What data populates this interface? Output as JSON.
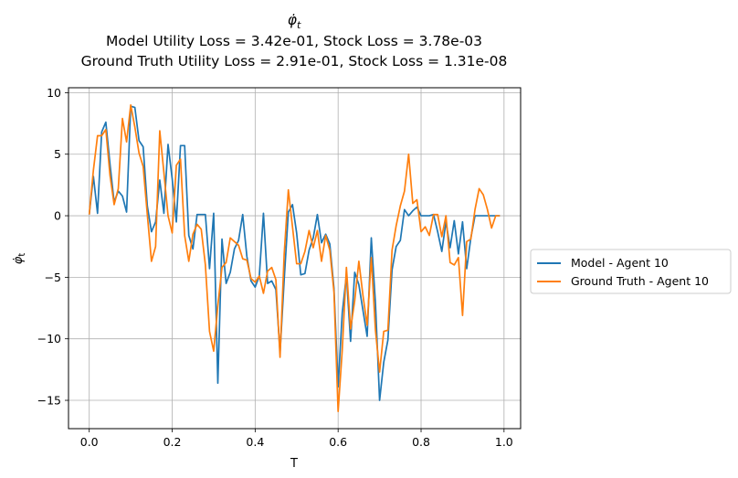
{
  "chart_data": {
    "type": "line",
    "title_symbol": "φ̇",
    "title_subscript": "t",
    "subtitle_1": "Model Utility Loss = 3.42e-01, Stock Loss = 3.78e-03",
    "subtitle_2": "Ground Truth Utility Loss = 2.91e-01, Stock Loss = 1.31e-08",
    "xlabel": "T",
    "ylabel_symbol": "φ̇",
    "ylabel_subscript": "t",
    "xlim": [
      -0.05,
      1.04
    ],
    "ylim": [
      -17.3,
      10.4
    ],
    "xticks": [
      0.0,
      0.2,
      0.4,
      0.6,
      0.8,
      1.0
    ],
    "xtick_labels": [
      "0.0",
      "0.2",
      "0.4",
      "0.6",
      "0.8",
      "1.0"
    ],
    "yticks": [
      10,
      5,
      0,
      -5,
      -10,
      -15
    ],
    "ytick_labels": [
      "10",
      "5",
      "0",
      "−5",
      "−10",
      "−15"
    ],
    "grid": true,
    "legend_position": "right-outside",
    "series": [
      {
        "name": "Model - Agent 10",
        "color": "#1f77b4",
        "x": [
          0.0,
          0.01,
          0.02,
          0.03,
          0.04,
          0.05,
          0.06,
          0.07,
          0.08,
          0.09,
          0.1,
          0.11,
          0.12,
          0.13,
          0.14,
          0.15,
          0.16,
          0.17,
          0.18,
          0.19,
          0.2,
          0.21,
          0.22,
          0.23,
          0.24,
          0.25,
          0.26,
          0.27,
          0.28,
          0.29,
          0.3,
          0.31,
          0.32,
          0.33,
          0.34,
          0.35,
          0.36,
          0.37,
          0.38,
          0.39,
          0.4,
          0.41,
          0.42,
          0.43,
          0.44,
          0.45,
          0.46,
          0.47,
          0.48,
          0.49,
          0.5,
          0.51,
          0.52,
          0.53,
          0.54,
          0.55,
          0.56,
          0.57,
          0.58,
          0.59,
          0.6,
          0.61,
          0.62,
          0.63,
          0.64,
          0.65,
          0.66,
          0.67,
          0.68,
          0.69,
          0.7,
          0.71,
          0.72,
          0.73,
          0.74,
          0.75,
          0.76,
          0.77,
          0.78,
          0.79,
          0.8,
          0.81,
          0.82,
          0.83,
          0.84,
          0.85,
          0.86,
          0.87,
          0.88,
          0.89,
          0.9,
          0.91,
          0.92,
          0.93,
          0.94,
          0.95,
          0.96,
          0.97,
          0.98,
          0.99
        ],
        "y": [
          0.1,
          3.2,
          0.2,
          6.8,
          7.6,
          4.2,
          1.1,
          2.0,
          1.6,
          0.3,
          8.9,
          8.8,
          6.1,
          5.6,
          0.8,
          -1.3,
          -0.5,
          2.9,
          0.2,
          5.8,
          3.0,
          -0.5,
          5.7,
          5.7,
          -1.6,
          -2.7,
          0.1,
          0.1,
          0.1,
          -4.3,
          0.2,
          -13.6,
          -1.9,
          -5.5,
          -4.6,
          -2.7,
          -2.0,
          0.1,
          -3.3,
          -5.3,
          -5.8,
          -4.9,
          0.2,
          -5.5,
          -5.3,
          -6.0,
          -11.1,
          -5.2,
          0.3,
          0.9,
          -1.4,
          -4.8,
          -4.7,
          -2.8,
          -1.8,
          0.1,
          -2.2,
          -1.5,
          -2.3,
          -5.9,
          -13.9,
          -7.9,
          -4.8,
          -10.2,
          -4.6,
          -5.6,
          -7.7,
          -9.8,
          -1.8,
          -7.1,
          -15.0,
          -11.9,
          -10.1,
          -4.4,
          -2.5,
          -2.0,
          0.5,
          0.0,
          0.4,
          0.7,
          0.0,
          0.0,
          0.0,
          0.1,
          -1.3,
          -2.9,
          -0.5,
          -2.6,
          -0.4,
          -3.1,
          -0.5,
          -4.3,
          -1.8,
          0.0,
          0.0,
          0.0,
          0.0,
          0.0,
          0.0,
          0.0
        ]
      },
      {
        "name": "Ground Truth - Agent 10",
        "color": "#ff7f0e",
        "x": [
          0.0,
          0.01,
          0.02,
          0.03,
          0.04,
          0.05,
          0.06,
          0.07,
          0.08,
          0.09,
          0.1,
          0.11,
          0.12,
          0.13,
          0.14,
          0.15,
          0.16,
          0.17,
          0.18,
          0.19,
          0.2,
          0.21,
          0.22,
          0.23,
          0.24,
          0.25,
          0.26,
          0.27,
          0.28,
          0.29,
          0.3,
          0.31,
          0.32,
          0.33,
          0.34,
          0.35,
          0.36,
          0.37,
          0.38,
          0.39,
          0.4,
          0.41,
          0.42,
          0.43,
          0.44,
          0.45,
          0.46,
          0.47,
          0.48,
          0.49,
          0.5,
          0.51,
          0.52,
          0.53,
          0.54,
          0.55,
          0.56,
          0.57,
          0.58,
          0.59,
          0.6,
          0.61,
          0.62,
          0.63,
          0.64,
          0.65,
          0.66,
          0.67,
          0.68,
          0.69,
          0.7,
          0.71,
          0.72,
          0.73,
          0.74,
          0.75,
          0.76,
          0.77,
          0.78,
          0.79,
          0.8,
          0.81,
          0.82,
          0.83,
          0.84,
          0.85,
          0.86,
          0.87,
          0.88,
          0.89,
          0.9,
          0.91,
          0.92,
          0.93,
          0.94,
          0.95,
          0.96,
          0.97,
          0.98,
          0.99
        ],
        "y": [
          0.1,
          3.7,
          6.5,
          6.5,
          7.0,
          3.3,
          0.9,
          2.2,
          7.9,
          6.0,
          9.0,
          7.2,
          5.1,
          4.0,
          0.1,
          -3.7,
          -2.5,
          6.9,
          3.5,
          0.0,
          -1.4,
          4.1,
          4.6,
          -1.6,
          -3.7,
          -1.5,
          -0.7,
          -1.1,
          -4.0,
          -9.4,
          -11.0,
          -7.3,
          -4.2,
          -3.8,
          -1.8,
          -2.1,
          -2.4,
          -3.5,
          -3.6,
          -5.1,
          -5.4,
          -4.9,
          -6.3,
          -4.5,
          -4.2,
          -5.2,
          -11.5,
          -3.1,
          2.1,
          -0.9,
          -3.9,
          -3.9,
          -2.9,
          -1.2,
          -2.6,
          -1.2,
          -3.7,
          -1.6,
          -2.8,
          -6.2,
          -15.9,
          -10.9,
          -4.2,
          -9.2,
          -6.9,
          -3.7,
          -6.5,
          -8.9,
          -3.4,
          -9.3,
          -12.7,
          -9.4,
          -9.3,
          -2.8,
          -0.8,
          0.8,
          2.0,
          5.0,
          1.0,
          1.3,
          -1.3,
          -0.9,
          -1.6,
          0.1,
          0.1,
          -1.7,
          0.0,
          -3.8,
          -4.0,
          -3.4,
          -8.1,
          -2.1,
          -1.9,
          0.5,
          2.2,
          1.7,
          0.5,
          -1.0,
          0.0,
          0.0
        ]
      }
    ]
  }
}
